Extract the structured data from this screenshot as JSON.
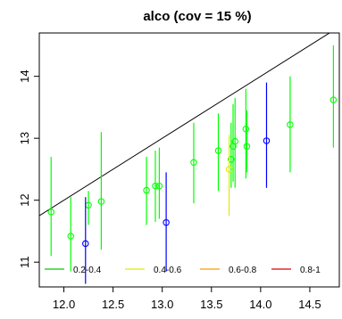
{
  "chart_data": {
    "type": "scatter",
    "title": "alco  (cov = 15 %)",
    "xlabel": "",
    "ylabel": "",
    "xlim": [
      11.75,
      14.8
    ],
    "ylim": [
      10.6,
      14.7
    ],
    "x_ticks": [
      12.0,
      12.5,
      13.0,
      13.5,
      14.0,
      14.5
    ],
    "x_tick_labels": [
      "12.0",
      "12.5",
      "13.0",
      "13.5",
      "14.0",
      "14.5"
    ],
    "y_ticks": [
      11,
      12,
      13,
      14
    ],
    "y_tick_labels": [
      "11",
      "12",
      "13",
      "14"
    ],
    "grid": false,
    "legend_position": "bottom",
    "reference_line": {
      "x": [
        11.75,
        14.8
      ],
      "y": [
        11.75,
        14.8
      ],
      "color": "#000000"
    },
    "legend": [
      {
        "label": "0.2-0.4",
        "color": "#00cc00"
      },
      {
        "label": "0.4-0.6",
        "color": "#e6e600"
      },
      {
        "label": "0.6-0.8",
        "color": "#ff9900"
      },
      {
        "label": "0.8-1",
        "color": "#dd0000"
      }
    ],
    "series": [
      {
        "name": "0.2-0.4",
        "color": "#00ff00",
        "points": [
          {
            "x": 11.87,
            "y": 11.81,
            "low": 11.1,
            "high": 12.7
          },
          {
            "x": 12.07,
            "y": 11.42,
            "low": 10.85,
            "high": 12.05
          },
          {
            "x": 12.25,
            "y": 11.92,
            "low": 11.6,
            "high": 12.15
          },
          {
            "x": 12.38,
            "y": 11.98,
            "low": 11.2,
            "high": 13.1
          },
          {
            "x": 12.84,
            "y": 12.16,
            "low": 11.6,
            "high": 12.7
          },
          {
            "x": 12.93,
            "y": 12.23,
            "low": 11.65,
            "high": 12.8
          },
          {
            "x": 12.97,
            "y": 12.23,
            "low": 11.7,
            "high": 12.85
          },
          {
            "x": 13.32,
            "y": 12.61,
            "low": 11.95,
            "high": 13.25
          },
          {
            "x": 13.57,
            "y": 12.8,
            "low": 12.15,
            "high": 13.4
          },
          {
            "x": 13.7,
            "y": 12.66,
            "low": 12.2,
            "high": 13.25
          },
          {
            "x": 13.72,
            "y": 12.87,
            "low": 12.3,
            "high": 13.55
          },
          {
            "x": 13.74,
            "y": 12.95,
            "low": 12.2,
            "high": 13.65
          },
          {
            "x": 13.85,
            "y": 13.15,
            "low": 12.35,
            "high": 13.8
          },
          {
            "x": 13.86,
            "y": 12.87,
            "low": 12.45,
            "high": 13.45
          },
          {
            "x": 14.3,
            "y": 13.22,
            "low": 12.45,
            "high": 14.0
          },
          {
            "x": 14.74,
            "y": 13.62,
            "low": 12.85,
            "high": 14.5
          }
        ]
      },
      {
        "name": "0.4-0.6",
        "color": "#e6e600",
        "points": [
          {
            "x": 13.68,
            "y": 12.5,
            "low": 11.75,
            "high": 13.05
          }
        ]
      },
      {
        "name": "blue",
        "color": "#0000ff",
        "points": [
          {
            "x": 12.22,
            "y": 11.3,
            "low": 10.65,
            "high": 12.05
          },
          {
            "x": 13.04,
            "y": 11.64,
            "low": 10.85,
            "high": 12.45
          },
          {
            "x": 14.06,
            "y": 12.96,
            "low": 12.2,
            "high": 13.9
          }
        ]
      }
    ]
  }
}
